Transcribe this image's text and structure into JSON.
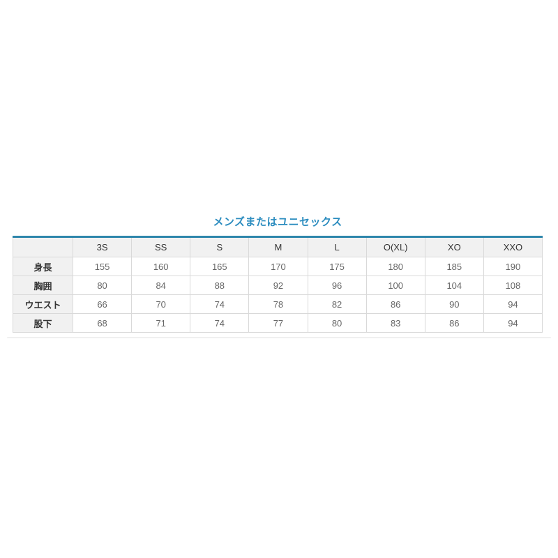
{
  "page": {
    "background_color": "#ffffff"
  },
  "size_chart": {
    "title": "メンズまたはユニセックス",
    "corner_label": "",
    "columns": [
      "3S",
      "SS",
      "S",
      "M",
      "L",
      "O(XL)",
      "XO",
      "XXO"
    ],
    "rows": [
      {
        "label": "身長",
        "values": [
          "155",
          "160",
          "165",
          "170",
          "175",
          "180",
          "185",
          "190"
        ]
      },
      {
        "label": "胸囲",
        "values": [
          "80",
          "84",
          "88",
          "92",
          "96",
          "100",
          "104",
          "108"
        ]
      },
      {
        "label": "ウエスト",
        "values": [
          "66",
          "70",
          "74",
          "78",
          "82",
          "86",
          "90",
          "94"
        ]
      },
      {
        "label": "股下",
        "values": [
          "68",
          "71",
          "74",
          "77",
          "80",
          "83",
          "86",
          "94"
        ]
      }
    ],
    "colors": {
      "accent_blue": "#2b8cbf",
      "rule_blue": "#2e86ab",
      "header_bg": "#f1f1f1",
      "cell_border": "#d9d9d9",
      "label_text": "#333333",
      "value_text": "#666666"
    }
  },
  "chart_data": {
    "type": "table",
    "title": "メンズまたはユニセックス",
    "columns": [
      "3S",
      "SS",
      "S",
      "M",
      "L",
      "O(XL)",
      "XO",
      "XXO"
    ],
    "row_headers": [
      "身長",
      "胸囲",
      "ウエスト",
      "股下"
    ],
    "series": [
      {
        "name": "身長",
        "values": [
          155,
          160,
          165,
          170,
          175,
          180,
          185,
          190
        ]
      },
      {
        "name": "胸囲",
        "values": [
          80,
          84,
          88,
          92,
          96,
          100,
          104,
          108
        ]
      },
      {
        "name": "ウエスト",
        "values": [
          66,
          70,
          74,
          78,
          82,
          86,
          90,
          94
        ]
      },
      {
        "name": "股下",
        "values": [
          68,
          71,
          74,
          77,
          80,
          83,
          86,
          94
        ]
      }
    ],
    "layout_hints": {
      "title_position": "top-center",
      "header_row_shaded": true,
      "first_column_shaded": true,
      "accent_rule_above_table": true
    }
  }
}
